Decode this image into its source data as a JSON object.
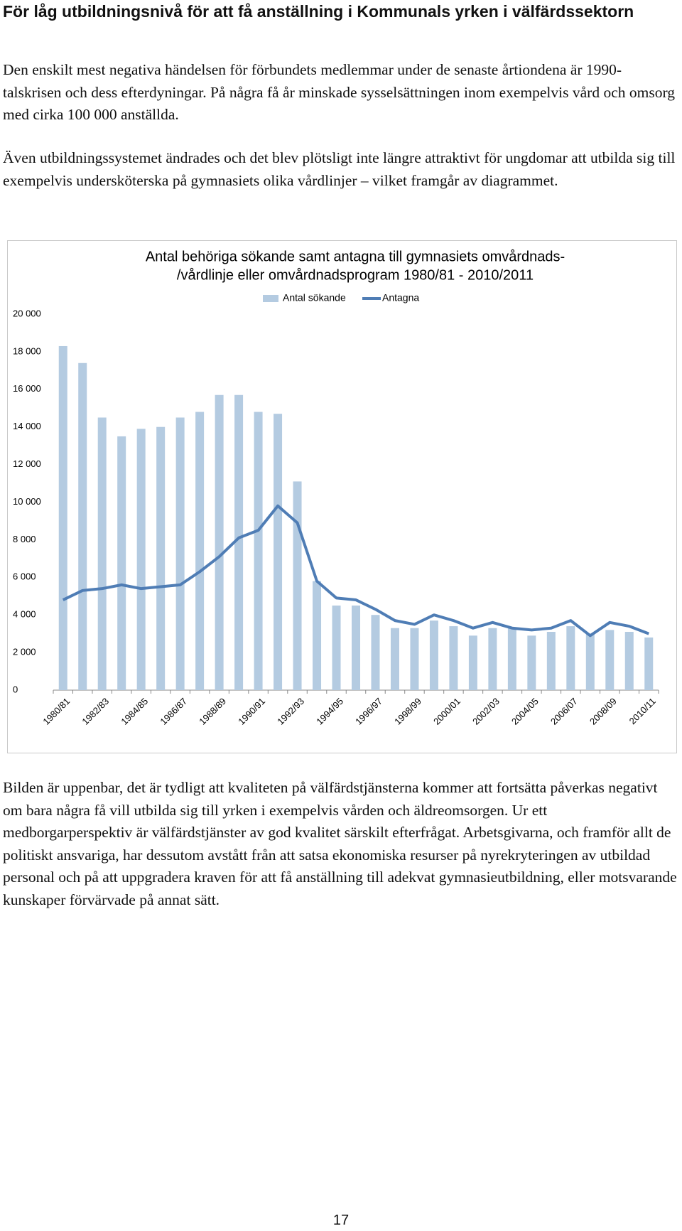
{
  "heading": "För låg utbildningsnivå för att få anställning i Kommunals yrken i välfärdssektorn",
  "paragraphs": [
    "Den enskilt mest negativa händelsen för förbundets medlemmar under de senaste årtiondena är 1990-talskrisen och dess efterdyningar. På några få år minskade sysselsättningen inom exempelvis vård och omsorg med cirka 100 000 anställda.",
    "Även utbildningssystemet ändrades och det blev plötsligt inte längre attraktivt för ungdomar att utbilda sig till exempelvis undersköterska på gymnasiets olika vårdlinjer – vilket framgår av diagrammet.",
    "Bilden är uppenbar, det är tydligt att kvaliteten på välfärdstjänsterna kommer att fortsätta påverkas negativt om bara några få vill utbilda sig till yrken i exempelvis vården och äldreomsorgen. Ur ett medborgarperspektiv är välfärdstjänster av god kvalitet särskilt efterfrågat. Arbetsgivarna, och framför allt de politiskt ansvariga, har dessutom avstått från att satsa ekonomiska resurser på nyrekryteringen av utbildad personal och på att uppgradera kraven för att få anställning till adekvat gymnasieutbildning, eller motsvarande kunskaper förvärvade på annat sätt."
  ],
  "chart_data": {
    "type": "bar-line",
    "title": [
      "Antal behöriga sökande samt antagna till gymnasiets omvårdnads-",
      "/vårdlinje eller omvårdnadsprogram 1980/81 - 2010/2011"
    ],
    "categories": [
      "1980/81",
      null,
      "1982/83",
      null,
      "1984/85",
      null,
      "1986/87",
      null,
      "1988/89",
      null,
      "1990/91",
      null,
      "1992/93",
      null,
      "1994/95",
      null,
      "1996/97",
      null,
      "1998/99",
      null,
      "2000/01",
      null,
      "2002/03",
      null,
      "2004/05",
      null,
      "2006/07",
      null,
      "2008/09",
      null,
      "2010/11"
    ],
    "series": [
      {
        "name": "Antal sökande",
        "type": "bar",
        "color": "#b4cbe1",
        "values": [
          18300,
          17400,
          14500,
          13500,
          13900,
          14000,
          14500,
          14800,
          15700,
          15700,
          14800,
          14700,
          11100,
          5800,
          4500,
          4500,
          4000,
          3300,
          3300,
          3700,
          3400,
          2900,
          3300,
          3300,
          2900,
          3100,
          3400,
          3000,
          3200,
          3100,
          2800
        ]
      },
      {
        "name": "Antagna",
        "type": "line",
        "color": "#4f7db5",
        "values": [
          4800,
          5300,
          5400,
          5600,
          5400,
          5500,
          5600,
          6300,
          7100,
          8100,
          8500,
          9800,
          8900,
          5800,
          4900,
          4800,
          4300,
          3700,
          3500,
          4000,
          3700,
          3300,
          3600,
          3300,
          3200,
          3300,
          3700,
          2900,
          3600,
          3400,
          3000
        ]
      }
    ],
    "ylim": [
      0,
      20000
    ],
    "yticks": [
      0,
      {
        "value": 2000,
        "label": "2 000"
      },
      {
        "value": 4000,
        "label": "4 000"
      },
      {
        "value": 6000,
        "label": "6 000"
      },
      {
        "value": 8000,
        "label": "8 000"
      },
      {
        "value": 10000,
        "label": "10 000"
      },
      {
        "value": 12000,
        "label": "12 000"
      },
      {
        "value": 14000,
        "label": "14 000"
      },
      {
        "value": 16000,
        "label": "16 000"
      },
      {
        "value": 18000,
        "label": "18 000"
      },
      {
        "value": 20000,
        "label": "20 000"
      }
    ],
    "grid": false,
    "legend": "top"
  },
  "page_number": "17"
}
